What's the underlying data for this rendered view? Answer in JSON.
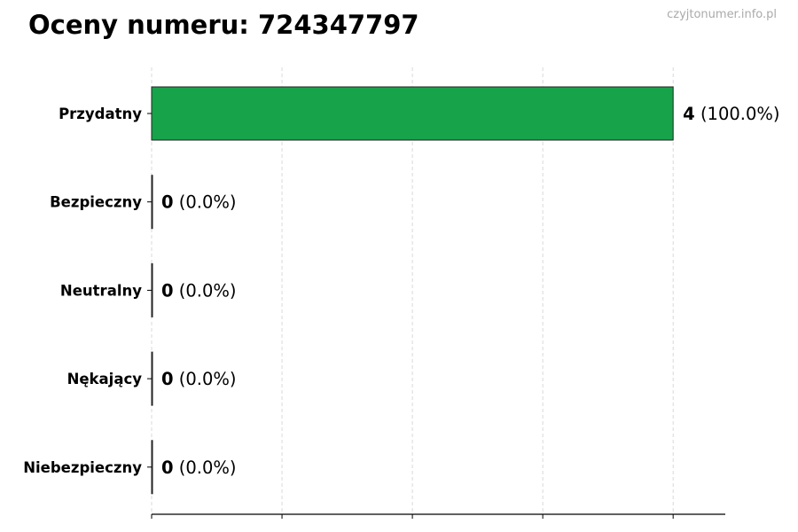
{
  "title": "Oceny numeru: 724347797",
  "watermark": "czyjtonumer.info.pl",
  "chart_data": {
    "type": "bar",
    "orientation": "horizontal",
    "title": "Oceny numeru: 724347797",
    "categories": [
      "Przydatny",
      "Bezpieczny",
      "Neutralny",
      "Nękający",
      "Niebezpieczny"
    ],
    "values": [
      4,
      0,
      0,
      0,
      0
    ],
    "labels": [
      {
        "count": "4",
        "pct": "(100.0%)"
      },
      {
        "count": "0",
        "pct": "(0.0%)"
      },
      {
        "count": "0",
        "pct": "(0.0%)"
      },
      {
        "count": "0",
        "pct": "(0.0%)"
      },
      {
        "count": "0",
        "pct": "(0.0%)"
      }
    ],
    "xlim": [
      0,
      4.4
    ],
    "xticks": [
      0,
      1,
      2,
      3,
      4
    ],
    "xtick_labels_shown": false,
    "grid": "x dashed",
    "bar_color": "#17a34a",
    "xlabel": "",
    "ylabel": ""
  }
}
